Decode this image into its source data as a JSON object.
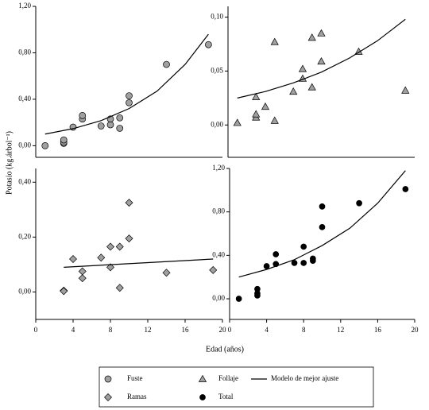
{
  "x_label": "Edad (años)",
  "y_label": "Potasio (kg.árbol⁻¹)",
  "fit_label": "Modelo de mejor ajuste",
  "chart_data": [
    {
      "type": "scatter",
      "xlim": [
        0,
        20
      ],
      "ylim": [
        -0.1,
        1.2
      ],
      "yticks": [
        {
          "value": 0,
          "label": "0,00"
        },
        {
          "value": 0.4,
          "label": "0,40"
        },
        {
          "value": 0.8,
          "label": "0,80"
        },
        {
          "value": 1.2,
          "label": "1,20"
        }
      ],
      "series": [
        {
          "name": "Fuste",
          "marker": "circle",
          "color": "#a0a0a0",
          "x": [
            1,
            3,
            3,
            3,
            4,
            5,
            5,
            7,
            8,
            8,
            9,
            9,
            10,
            10,
            14,
            18.5
          ],
          "values": [
            0.0,
            0.02,
            0.03,
            0.05,
            0.16,
            0.23,
            0.26,
            0.17,
            0.18,
            0.23,
            0.15,
            0.24,
            0.37,
            0.43,
            0.7,
            0.87
          ]
        }
      ],
      "fit": {
        "x": [
          1,
          4,
          7,
          10,
          13,
          16,
          18.5
        ],
        "values": [
          0.1,
          0.147,
          0.216,
          0.32,
          0.47,
          0.7,
          0.96
        ]
      }
    },
    {
      "type": "scatter",
      "xlim": [
        0,
        20
      ],
      "ylim": [
        -0.03,
        0.11
      ],
      "yticks": [
        {
          "value": 0,
          "label": "0,00"
        },
        {
          "value": 0.05,
          "label": "0,05"
        },
        {
          "value": 0.1,
          "label": "0,10"
        }
      ],
      "series": [
        {
          "name": "Follaje",
          "marker": "triangle",
          "color": "#a0a0a0",
          "x": [
            1,
            3,
            3,
            3,
            4,
            5,
            5,
            7,
            8,
            8,
            9,
            9,
            10,
            10,
            14,
            19
          ],
          "values": [
            0.002,
            0.007,
            0.01,
            0.026,
            0.017,
            0.004,
            0.077,
            0.031,
            0.043,
            0.052,
            0.035,
            0.081,
            0.085,
            0.059,
            0.068,
            0.032
          ]
        }
      ],
      "fit": {
        "x": [
          1,
          4,
          7,
          10,
          13,
          16,
          19
        ],
        "values": [
          0.025,
          0.031,
          0.039,
          0.049,
          0.062,
          0.078,
          0.098
        ]
      }
    },
    {
      "type": "scatter",
      "xlim": [
        0,
        20
      ],
      "ylim": [
        -0.1,
        0.45
      ],
      "xticks": [
        0,
        4,
        8,
        12,
        16,
        20
      ],
      "yticks": [
        {
          "value": 0,
          "label": "0,00"
        },
        {
          "value": 0.2,
          "label": "0,20"
        },
        {
          "value": 0.4,
          "label": "0,40"
        }
      ],
      "series": [
        {
          "name": "Ramas",
          "marker": "diamond",
          "color": "#a0a0a0",
          "x": [
            3,
            3,
            4,
            5,
            5,
            7,
            8,
            8,
            9,
            9,
            10,
            10,
            14,
            19
          ],
          "values": [
            0.005,
            0.003,
            0.12,
            0.075,
            0.05,
            0.125,
            0.165,
            0.09,
            0.165,
            0.015,
            0.195,
            0.325,
            0.07,
            0.08
          ]
        }
      ],
      "fit": {
        "x": [
          3,
          19
        ],
        "values": [
          0.09,
          0.12
        ]
      }
    },
    {
      "type": "scatter",
      "xlim": [
        0,
        20
      ],
      "ylim": [
        -0.19,
        1.2
      ],
      "xticks": [
        0,
        4,
        8,
        12,
        16,
        20
      ],
      "yticks": [
        {
          "value": 0,
          "label": "0,00"
        },
        {
          "value": 0.4,
          "label": "0,40"
        },
        {
          "value": 0.8,
          "label": "0,80"
        },
        {
          "value": 1.2,
          "label": "1,20"
        }
      ],
      "series": [
        {
          "name": "Total",
          "marker": "dot",
          "color": "#000000",
          "x": [
            1,
            3,
            3,
            3,
            4,
            5,
            5,
            7,
            8,
            8,
            9,
            9,
            10,
            10,
            14,
            19
          ],
          "values": [
            0.0,
            0.03,
            0.05,
            0.09,
            0.3,
            0.32,
            0.41,
            0.33,
            0.33,
            0.48,
            0.35,
            0.37,
            0.66,
            0.85,
            0.88,
            1.01
          ]
        }
      ],
      "fit": {
        "x": [
          1,
          4,
          7,
          10,
          13,
          16,
          19
        ],
        "values": [
          0.2,
          0.27,
          0.36,
          0.49,
          0.65,
          0.88,
          1.18
        ]
      }
    }
  ]
}
